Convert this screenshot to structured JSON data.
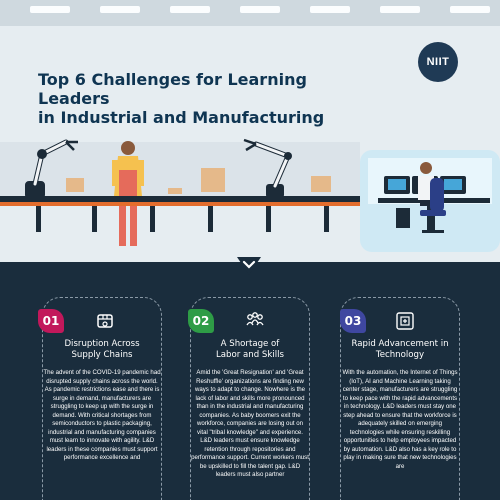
{
  "brand": {
    "logo_text": "NIIT",
    "colors": {
      "navy": "#1a2d3d",
      "title": "#0f3552",
      "badge1": "#c2185b",
      "badge2": "#2e9c46",
      "badge3": "#3f47a0"
    }
  },
  "header": {
    "title_line1": "Top 6 Challenges for Learning Leaders",
    "title_line2": "in Industrial and Manufacturing"
  },
  "divider": {
    "icon": "chevron-down-icon"
  },
  "cards": [
    {
      "number": "01",
      "icon": "supply-chain-icon",
      "title_line1": "Disruption Across",
      "title_line2": "Supply Chains",
      "body": "The advent of the COVID-19 pandemic had disrupted supply chains across the world. As pandemic restrictions ease and there is surge in demand, manufacturers are struggling to keep up with the surge in demand. With critical shortages from semiconductors to plastic packaging, industrial and manufacturing companies must learn to innovate with agility. L&D leaders in these companies must support performance excellence and"
    },
    {
      "number": "02",
      "icon": "workforce-icon",
      "title_line1": "A Shortage of",
      "title_line2": "Labor and Skills",
      "body": "Amid the 'Great Resignation' and 'Great Reshuffle' organizations are finding new ways to adapt to change. Nowhere is the lack of labor and skills more pronounced than in the industrial and manufacturing companies. As baby boomers exit the workforce, companies are losing out on vital \"tribal knowledge\" and experience. L&D leaders must ensure knowledge retention through repositories and performance support. Current workers must be upskilled to fill the talent gap. L&D leaders must also partner"
    },
    {
      "number": "03",
      "icon": "automation-icon",
      "title_line1": "Rapid Advancement in",
      "title_line2": "Technology",
      "body": "With the automation, the Internet of Things (IoT), AI and Machine Learning taking center stage, manufacturers are struggling to keep pace with the rapid advancements in technology. L&D leaders must stay one step ahead to ensure that the workforce is adequately skilled on emerging technologies while ensuring reskilling opportunities to help employees impacted by automation. L&D also has a key role to play in making sure that new technologies are"
    }
  ]
}
